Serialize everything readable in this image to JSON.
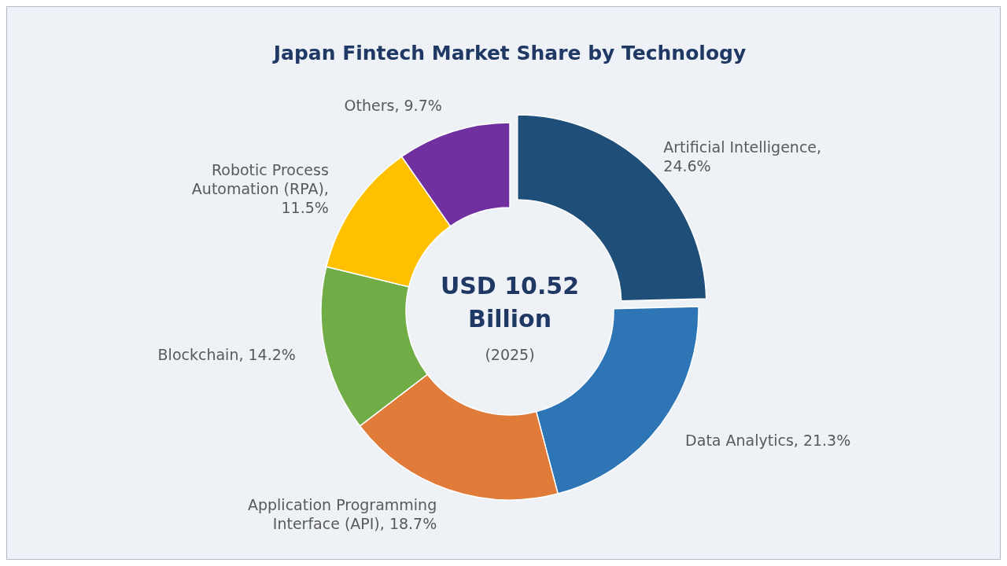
{
  "chart_data": {
    "type": "donut",
    "title": "Japan Fintech Market Share by Technology",
    "categories": [
      "Artificial Intelligence",
      "Data Analytics",
      "Application Programming Interface (API)",
      "Blockchain",
      "Robotic Process Automation (RPA)",
      "Others"
    ],
    "values": [
      24.6,
      21.3,
      18.7,
      14.2,
      11.5,
      9.7
    ],
    "value_labels": [
      ", 24.6%",
      ", 21.3%",
      ", 18.7%",
      ", 14.2%",
      ", 11.5%",
      ", 9.7%"
    ],
    "colors": [
      "#1f4e79",
      "#2e75b6",
      "#e07b39",
      "#70ad47",
      "#ffc000",
      "#7030a0"
    ],
    "annotations": [
      "USD 10.52 Billion",
      "(2025)"
    ]
  }
}
